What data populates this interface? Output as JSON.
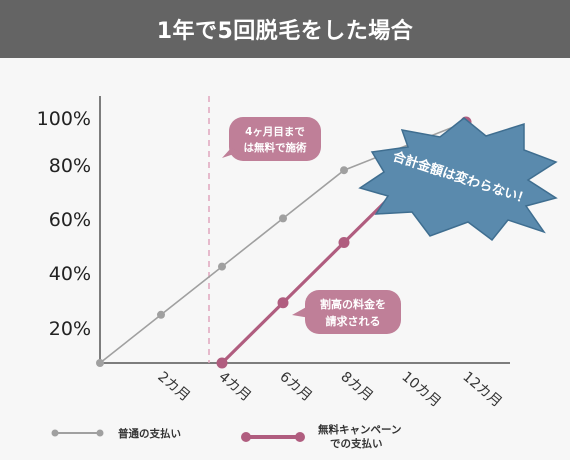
{
  "header": {
    "title": "1年で5回脱毛をした場合"
  },
  "chart_data": {
    "type": "line",
    "x_labels": [
      "2カ月",
      "4カ月",
      "6カ月",
      "8カ月",
      "10カ月",
      "12カ月"
    ],
    "y_ticks": [
      "20%",
      "40%",
      "60%",
      "80%",
      "100%"
    ],
    "xlim": [
      0,
      12
    ],
    "ylim": [
      0,
      100
    ],
    "grid": false,
    "legend_position": "bottom",
    "series": [
      {
        "name": "普通の支払い",
        "color": "#a0a0a0",
        "points": [
          [
            0,
            0
          ],
          [
            2,
            20
          ],
          [
            4,
            40
          ],
          [
            6,
            60
          ],
          [
            8,
            80
          ],
          [
            12,
            100
          ]
        ]
      },
      {
        "name": "無料キャンペーンでの支払い",
        "color": "#b05d7f",
        "points": [
          [
            4,
            0
          ],
          [
            6,
            25
          ],
          [
            8,
            50
          ],
          [
            12,
            100
          ]
        ]
      }
    ],
    "annotations": {
      "bubble_1": [
        "4ヶ月目まで",
        "は無料で施術"
      ],
      "bubble_2": [
        "割高の料金を",
        "請求される"
      ],
      "burst": "合計金額は変わらない！"
    },
    "legend": {
      "item_1": [
        "普通の支払い"
      ],
      "item_2": [
        "無料キャンペーン",
        "での支払い"
      ]
    }
  }
}
